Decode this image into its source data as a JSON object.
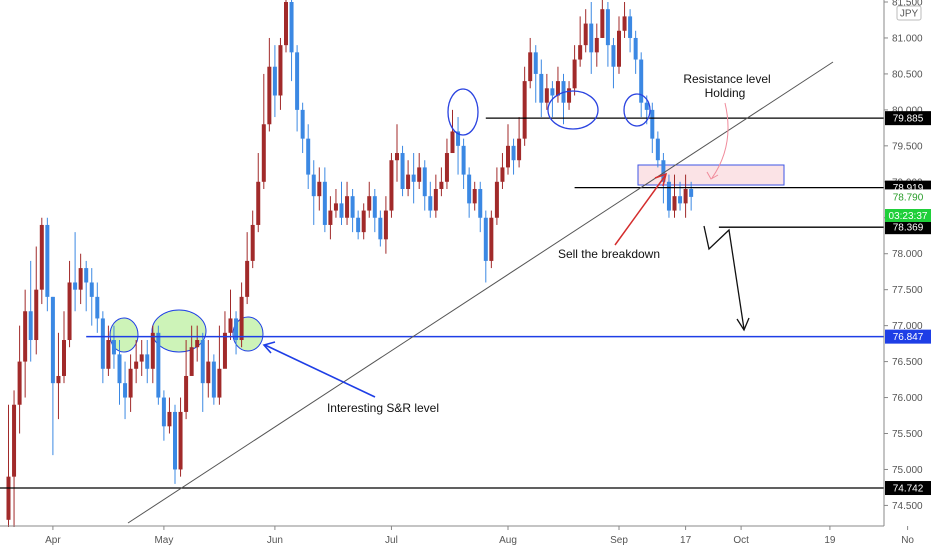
{
  "chart_data": {
    "type": "candlestick",
    "currency_badge": "JPY",
    "y_range": [
      74.2,
      81.5
    ],
    "y_ticks": [
      "81.500",
      "81.000",
      "80.500",
      "80.000",
      "79.500",
      "79.000",
      "78.500",
      "78.000",
      "77.500",
      "77.000",
      "76.500",
      "76.000",
      "75.500",
      "75.000",
      "74.500"
    ],
    "x_ticks": [
      {
        "label": "Apr",
        "bar": 8
      },
      {
        "label": "May",
        "bar": 28
      },
      {
        "label": "Jun",
        "bar": 48
      },
      {
        "label": "Jul",
        "bar": 69
      },
      {
        "label": "Aug",
        "bar": 90
      },
      {
        "label": "Sep",
        "bar": 110
      },
      {
        "label": "17",
        "bar": 122
      },
      {
        "label": "Oct",
        "bar": 132
      },
      {
        "label": "19",
        "bar": 148
      },
      {
        "label": "No",
        "bar": 162
      }
    ],
    "candles": [
      [
        74.9,
        74.3,
        75.9,
        74.2
      ],
      [
        75.9,
        74.9,
        76.1,
        74.2
      ],
      [
        76.5,
        75.9,
        77.0,
        75.5
      ],
      [
        77.2,
        76.5,
        77.5,
        76.0
      ],
      [
        76.8,
        77.2,
        77.9,
        76.5
      ],
      [
        77.5,
        76.8,
        78.1,
        76.6
      ],
      [
        78.4,
        77.5,
        78.5,
        77.3
      ],
      [
        77.4,
        78.4,
        78.5,
        77.2
      ],
      [
        76.2,
        77.4,
        77.4,
        75.2
      ],
      [
        76.3,
        76.2,
        76.9,
        75.7
      ],
      [
        76.8,
        76.3,
        77.2,
        76.2
      ],
      [
        77.6,
        76.8,
        77.9,
        76.7
      ],
      [
        77.5,
        77.6,
        78.3,
        77.2
      ],
      [
        77.8,
        77.5,
        78.0,
        77.3
      ],
      [
        77.6,
        77.8,
        77.9,
        77.2
      ],
      [
        77.4,
        77.6,
        77.8,
        77.0
      ],
      [
        77.1,
        77.4,
        77.6,
        76.9
      ],
      [
        76.4,
        77.1,
        77.2,
        76.2
      ],
      [
        76.8,
        76.4,
        77.0,
        76.3
      ],
      [
        76.6,
        76.8,
        77.0,
        76.4
      ],
      [
        76.2,
        76.6,
        76.8,
        75.9
      ],
      [
        76.0,
        76.2,
        76.5,
        75.7
      ],
      [
        76.4,
        76.0,
        76.6,
        75.8
      ],
      [
        76.5,
        76.4,
        76.8,
        76.2
      ],
      [
        76.6,
        76.5,
        76.8,
        76.3
      ],
      [
        76.4,
        76.6,
        76.8,
        76.2
      ],
      [
        76.9,
        76.4,
        77.0,
        76.2
      ],
      [
        76.0,
        76.9,
        77.0,
        75.9
      ],
      [
        75.6,
        76.0,
        76.1,
        75.4
      ],
      [
        75.8,
        75.6,
        76.0,
        75.5
      ],
      [
        75.0,
        75.8,
        75.9,
        74.8
      ],
      [
        75.8,
        75.0,
        76.0,
        74.9
      ],
      [
        76.3,
        75.8,
        76.8,
        75.7
      ],
      [
        76.7,
        76.3,
        77.0,
        76.6
      ],
      [
        76.8,
        76.7,
        77.0,
        76.5
      ],
      [
        76.2,
        76.8,
        76.9,
        75.8
      ],
      [
        76.5,
        76.2,
        76.8,
        76.0
      ],
      [
        76.0,
        76.5,
        76.6,
        75.9
      ],
      [
        76.4,
        76.0,
        77.0,
        75.9
      ],
      [
        76.9,
        76.4,
        77.2,
        76.6
      ],
      [
        77.1,
        76.9,
        77.5,
        76.8
      ],
      [
        76.8,
        77.1,
        77.2,
        76.6
      ],
      [
        77.4,
        76.8,
        77.6,
        76.7
      ],
      [
        77.9,
        77.4,
        78.3,
        77.3
      ],
      [
        78.4,
        77.9,
        78.6,
        77.8
      ],
      [
        79.0,
        78.4,
        79.4,
        78.3
      ],
      [
        79.8,
        79.0,
        80.5,
        78.9
      ],
      [
        80.6,
        79.8,
        81.0,
        79.7
      ],
      [
        80.2,
        80.6,
        80.9,
        79.9
      ],
      [
        80.9,
        80.2,
        81.0,
        80.0
      ],
      [
        81.5,
        80.9,
        81.6,
        80.8
      ],
      [
        80.8,
        81.5,
        81.6,
        80.4
      ],
      [
        80.0,
        80.8,
        80.9,
        79.7
      ],
      [
        79.6,
        80.0,
        80.1,
        79.4
      ],
      [
        79.1,
        79.6,
        79.8,
        78.9
      ],
      [
        78.8,
        79.1,
        79.3,
        78.4
      ],
      [
        79.0,
        78.8,
        79.2,
        78.6
      ],
      [
        78.4,
        79.0,
        79.2,
        78.3
      ],
      [
        78.6,
        78.4,
        78.8,
        78.2
      ],
      [
        78.7,
        78.6,
        78.9,
        78.5
      ],
      [
        78.5,
        78.7,
        79.0,
        78.4
      ],
      [
        78.8,
        78.5,
        79.0,
        78.4
      ],
      [
        78.5,
        78.8,
        78.9,
        78.3
      ],
      [
        78.3,
        78.5,
        78.6,
        78.2
      ],
      [
        78.6,
        78.3,
        78.7,
        78.2
      ],
      [
        78.8,
        78.6,
        79.0,
        78.5
      ],
      [
        78.5,
        78.8,
        78.9,
        78.3
      ],
      [
        78.2,
        78.5,
        78.6,
        78.1
      ],
      [
        78.6,
        78.2,
        78.8,
        78.0
      ],
      [
        79.3,
        78.6,
        79.4,
        78.5
      ],
      [
        79.4,
        79.3,
        79.8,
        79.0
      ],
      [
        78.9,
        79.4,
        79.5,
        78.8
      ],
      [
        79.1,
        78.9,
        79.3,
        78.8
      ],
      [
        79.0,
        79.1,
        79.4,
        78.7
      ],
      [
        79.2,
        79.0,
        79.4,
        78.9
      ],
      [
        78.8,
        79.2,
        79.3,
        78.6
      ],
      [
        78.6,
        78.8,
        79.0,
        78.5
      ],
      [
        78.9,
        78.6,
        79.1,
        78.5
      ],
      [
        79.0,
        78.9,
        79.2,
        78.8
      ],
      [
        79.4,
        79.0,
        79.6,
        78.9
      ],
      [
        79.7,
        79.4,
        80.0,
        79.5
      ],
      [
        79.5,
        79.7,
        79.9,
        79.1
      ],
      [
        79.1,
        79.5,
        79.6,
        78.9
      ],
      [
        78.7,
        79.1,
        79.2,
        78.5
      ],
      [
        78.9,
        78.7,
        79.0,
        78.6
      ],
      [
        78.5,
        78.9,
        79.0,
        78.3
      ],
      [
        77.9,
        78.5,
        78.6,
        77.6
      ],
      [
        78.5,
        77.9,
        78.6,
        77.8
      ],
      [
        79.0,
        78.5,
        79.2,
        78.4
      ],
      [
        79.2,
        79.0,
        79.4,
        78.9
      ],
      [
        79.5,
        79.2,
        79.8,
        79.1
      ],
      [
        79.3,
        79.5,
        79.6,
        79.1
      ],
      [
        79.6,
        79.3,
        79.9,
        79.2
      ],
      [
        80.4,
        79.6,
        80.6,
        79.5
      ],
      [
        80.8,
        80.4,
        81.0,
        80.3
      ],
      [
        80.5,
        80.8,
        80.9,
        80.1
      ],
      [
        80.1,
        80.5,
        80.7,
        79.9
      ],
      [
        80.3,
        80.1,
        80.5,
        80.0
      ],
      [
        80.2,
        80.3,
        80.4,
        79.9
      ],
      [
        80.4,
        80.2,
        80.6,
        80.1
      ],
      [
        80.1,
        80.4,
        80.5,
        79.8
      ],
      [
        80.3,
        80.1,
        80.4,
        80.0
      ],
      [
        80.7,
        80.3,
        80.9,
        80.2
      ],
      [
        80.9,
        80.7,
        81.3,
        80.6
      ],
      [
        81.2,
        80.9,
        81.4,
        80.8
      ],
      [
        80.8,
        81.2,
        81.5,
        80.5
      ],
      [
        81.0,
        80.8,
        81.2,
        80.6
      ],
      [
        81.4,
        81.0,
        81.6,
        81.0
      ],
      [
        80.9,
        81.4,
        81.5,
        80.6
      ],
      [
        80.6,
        80.9,
        81.0,
        80.3
      ],
      [
        81.1,
        80.6,
        81.3,
        80.5
      ],
      [
        81.3,
        81.1,
        81.5,
        81.0
      ],
      [
        81.0,
        81.3,
        81.4,
        80.8
      ],
      [
        80.7,
        81.0,
        81.1,
        80.5
      ],
      [
        80.1,
        80.7,
        80.8,
        79.9
      ],
      [
        80.0,
        80.1,
        80.2,
        79.8
      ],
      [
        79.6,
        80.0,
        80.1,
        79.4
      ],
      [
        79.3,
        79.6,
        79.7,
        79.2
      ],
      [
        79.0,
        79.3,
        79.4,
        78.7
      ],
      [
        78.6,
        79.0,
        79.1,
        78.5
      ],
      [
        78.8,
        78.6,
        79.1,
        78.5
      ],
      [
        78.7,
        78.8,
        79.0,
        78.6
      ],
      [
        78.9,
        78.7,
        79.1,
        78.5
      ],
      [
        78.79,
        78.9,
        79.0,
        78.6
      ]
    ],
    "levels": [
      {
        "name": "top-resistance",
        "price": 79.885,
        "color": "#000000",
        "label": "79.885",
        "x_from_bar": 86
      },
      {
        "name": "breakdown",
        "price": 78.919,
        "color": "#000000",
        "label": "78.919",
        "x_from_bar": 102
      },
      {
        "name": "current",
        "price": 78.79,
        "color": "#26a69a",
        "label": "78.790",
        "x_from_bar": -1
      },
      {
        "name": "target1",
        "price": 78.369,
        "color": "#000000",
        "label": "78.369",
        "x_from_bar": 128
      },
      {
        "name": "sr",
        "price": 76.847,
        "color": "#1e3ee6",
        "label": "76.847",
        "x_from_bar": 14
      },
      {
        "name": "bottom",
        "price": 74.742,
        "color": "#000000",
        "label": "74.742",
        "x_from_bar": 0
      }
    ],
    "countdown": "03:23:37",
    "annotations": {
      "resistance_line1": "Resistance level",
      "resistance_line2": "Holding",
      "sell": "Sell the breakdown",
      "sr": "Interesting S&R level"
    },
    "colors": {
      "up": "#3b88e3",
      "down": "#a12a2a",
      "blue_line": "#1e3ee6",
      "green_badge": "#1fcf3a",
      "arrow_red": "#d42d2d",
      "zone_fill": "#fbe3e6",
      "zone_stroke": "#3c54e6",
      "green_zone": "#cdf3b8"
    }
  }
}
